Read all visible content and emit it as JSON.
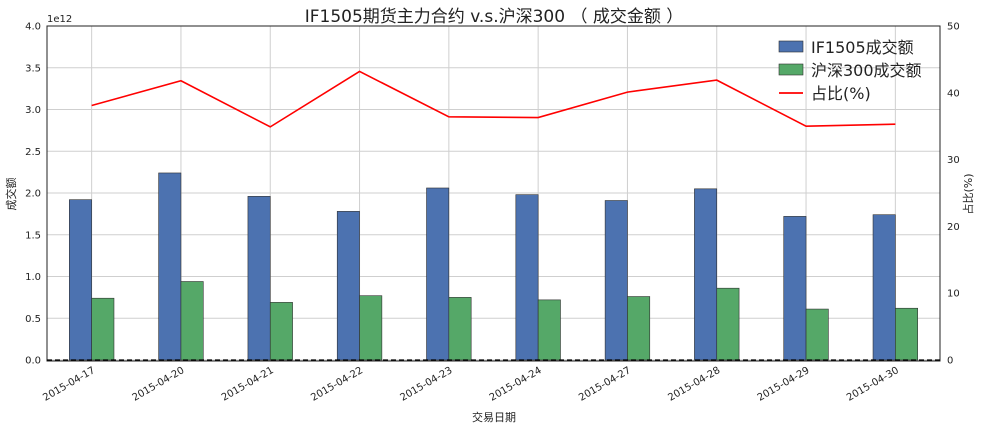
{
  "chart_data": {
    "type": "bar",
    "title": "IF1505期货主力合约 v.s.沪深300 （ 成交金额 ）",
    "xlabel": "交易日期",
    "ylabel": "成交额",
    "y2label": "占比(%)",
    "y_exponent_label": "1e12",
    "categories": [
      "2015-04-17",
      "2015-04-20",
      "2015-04-21",
      "2015-04-22",
      "2015-04-23",
      "2015-04-24",
      "2015-04-27",
      "2015-04-28",
      "2015-04-29",
      "2015-04-30"
    ],
    "ylim": [
      0,
      4.0
    ],
    "yticks": [
      "0.0",
      "0.5",
      "1.0",
      "1.5",
      "2.0",
      "2.5",
      "3.0",
      "3.5",
      "4.0"
    ],
    "y2lim": [
      0,
      50
    ],
    "y2ticks": [
      "0",
      "10",
      "20",
      "30",
      "40",
      "50"
    ],
    "grid": true,
    "legend_position": "top-right",
    "series": [
      {
        "name": "IF1505成交额",
        "kind": "bar",
        "axis": "left",
        "color": "#4c72b0",
        "values": [
          1.92,
          2.24,
          1.96,
          1.78,
          2.06,
          1.98,
          1.91,
          2.05,
          1.72,
          1.74
        ]
      },
      {
        "name": "沪深300成交额",
        "kind": "bar",
        "axis": "left",
        "color": "#55a868",
        "values": [
          0.74,
          0.94,
          0.69,
          0.77,
          0.75,
          0.72,
          0.76,
          0.86,
          0.61,
          0.62
        ]
      },
      {
        "name": "占比(%)",
        "kind": "line",
        "axis": "right",
        "color": "#ff0000",
        "values": [
          38.1,
          41.8,
          34.9,
          43.2,
          36.4,
          36.3,
          40.1,
          41.9,
          35.0,
          35.3
        ]
      }
    ]
  }
}
